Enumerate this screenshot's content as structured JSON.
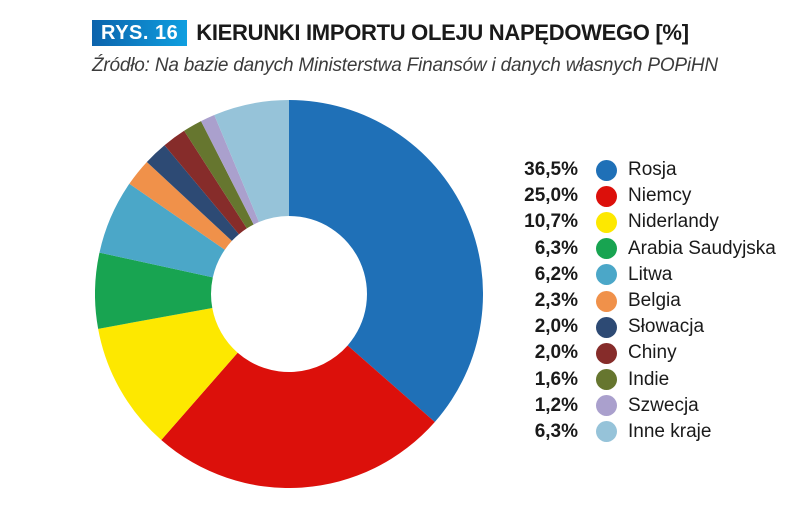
{
  "header": {
    "badge": "RYS. 16",
    "title": "KIERUNKI IMPORTU OLEJU NAPĘDOWEGO [%]",
    "source": "Źródło: Na bazie danych Ministerstwa Finansów i danych własnych POPiHN"
  },
  "colors": {
    "badge_gradient_start": "#0c63ac",
    "badge_gradient_end": "#0f9fe0",
    "title_text": "#1a1a1a",
    "source_text": "#3c3c3c"
  },
  "chart_data": {
    "type": "pie",
    "subtype": "donut",
    "title": "KIERUNKI IMPORTU OLEJU NAPĘDOWEGO [%]",
    "source": "Źródło: Na bazie danych Ministerstwa Finansów i danych własnych POPiHN",
    "unit": "%",
    "direction": "clockwise",
    "start_angle": "12-oclock",
    "inner_radius_ratio": 0.402,
    "legend_position": "right",
    "slices": [
      {
        "label": "Rosja",
        "value": 36.5,
        "display": "36,5%",
        "color": "#1f70b7"
      },
      {
        "label": "Niemcy",
        "value": 25.0,
        "display": "25,0%",
        "color": "#dc100b"
      },
      {
        "label": "Niderlandy",
        "value": 10.7,
        "display": "10,7%",
        "color": "#fde800"
      },
      {
        "label": "Arabia Saudyjska",
        "value": 6.3,
        "display": "6,3%",
        "color": "#18a451"
      },
      {
        "label": "Litwa",
        "value": 6.2,
        "display": "6,2%",
        "color": "#4ba7c8"
      },
      {
        "label": "Belgia",
        "value": 2.3,
        "display": "2,3%",
        "color": "#f0914a"
      },
      {
        "label": "Słowacja",
        "value": 2.0,
        "display": "2,0%",
        "color": "#2d4a74"
      },
      {
        "label": "Chiny",
        "value": 2.0,
        "display": "2,0%",
        "color": "#862c2a"
      },
      {
        "label": "Indie",
        "value": 1.6,
        "display": "1,6%",
        "color": "#66762f"
      },
      {
        "label": "Szwecja",
        "value": 1.2,
        "display": "1,2%",
        "color": "#aaa0cd"
      },
      {
        "label": "Inne kraje",
        "value": 6.3,
        "display": "6,3%",
        "color": "#96c3d9"
      }
    ]
  }
}
